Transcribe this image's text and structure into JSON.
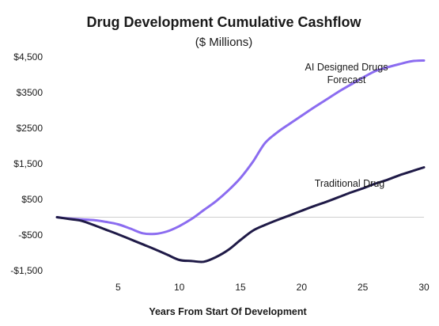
{
  "chart_data": {
    "type": "line",
    "title": "Drug Development Cumulative Cashflow",
    "subtitle": "($ Millions)",
    "xlabel": "Years From Start Of Development",
    "ylabel": "",
    "xlim": [
      0,
      30
    ],
    "ylim": [
      -1500,
      4500
    ],
    "x_ticks": [
      5,
      10,
      15,
      20,
      25,
      30
    ],
    "y_ticks": [
      {
        "value": 4500,
        "label": "$4,500"
      },
      {
        "value": 3500,
        "label": "$3500"
      },
      {
        "value": 2500,
        "label": "$2500"
      },
      {
        "value": 1500,
        "label": "$1,500"
      },
      {
        "value": 500,
        "label": "$500"
      },
      {
        "value": -500,
        "label": "-$500"
      },
      {
        "value": -1500,
        "label": "-$1,500"
      }
    ],
    "zero_line": true,
    "grid": false,
    "series": [
      {
        "annotation": [
          "AI Designed Drugs",
          "Forecast"
        ],
        "color": "#8b6cf0",
        "x": [
          0,
          1,
          2,
          3,
          4,
          5,
          6,
          7,
          8,
          9,
          10,
          11,
          12,
          13,
          14,
          15,
          16,
          17,
          18,
          19,
          20,
          21,
          22,
          23,
          24,
          25,
          26,
          27,
          28,
          29,
          30
        ],
        "values": [
          0,
          -40,
          -60,
          -80,
          -130,
          -200,
          -320,
          -450,
          -470,
          -400,
          -250,
          -50,
          200,
          450,
          750,
          1100,
          1550,
          2080,
          2380,
          2620,
          2850,
          3080,
          3300,
          3520,
          3720,
          3920,
          4100,
          4210,
          4300,
          4380,
          4400
        ]
      },
      {
        "annotation": [
          "Traditional Drug"
        ],
        "color": "#1f1a47",
        "x": [
          0,
          1,
          2,
          3,
          4,
          5,
          6,
          7,
          8,
          9,
          10,
          11,
          12,
          13,
          14,
          15,
          16,
          17,
          18,
          19,
          20,
          21,
          22,
          23,
          24,
          25,
          26,
          27,
          28,
          29,
          30
        ],
        "values": [
          0,
          -50,
          -100,
          -220,
          -350,
          -480,
          -620,
          -760,
          -900,
          -1050,
          -1200,
          -1230,
          -1250,
          -1120,
          -920,
          -640,
          -380,
          -220,
          -80,
          50,
          180,
          310,
          430,
          560,
          690,
          810,
          940,
          1050,
          1180,
          1290,
          1400
        ]
      }
    ]
  }
}
